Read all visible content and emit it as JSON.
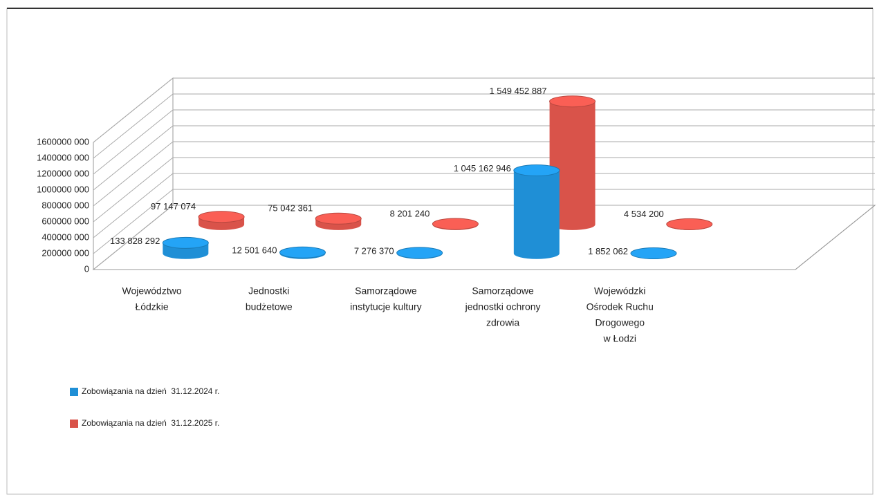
{
  "chart_data": {
    "type": "cylinder3d",
    "categories": [
      [
        "Województwo",
        "Łódzkie"
      ],
      [
        "Jednostki",
        "budżetowe"
      ],
      [
        "Samorządowe",
        "instytucje kultury"
      ],
      [
        "Samorządowe",
        "jednostki ochrony",
        "zdrowia"
      ],
      [
        "Wojewódzki",
        "Ośrodek Ruchu",
        "Drogowego",
        "w Łodzi"
      ]
    ],
    "series": [
      {
        "name": "Zobowiązania na dzień  31.12.2024 r.",
        "color": "#1f8fd6",
        "values": [
          133828292,
          12501640,
          7276370,
          1045162946,
          1852062
        ],
        "value_labels": [
          "133 828 292",
          "12 501 640",
          "7 276 370",
          "1 045 162 946",
          "1 852 062"
        ]
      },
      {
        "name": "Zobowiązania na dzień  31.12.2025 r.",
        "color": "#d9534a",
        "values": [
          97147074,
          75042361,
          8201240,
          1549452887,
          4534200
        ],
        "value_labels": [
          "97 147 074",
          "75 042 361",
          "8 201 240",
          "1 549 452 887",
          "4 534 200"
        ]
      }
    ],
    "ylim": [
      0,
      1600000000
    ],
    "yticks": [
      0,
      {
        "value": 200000000,
        "label": "200000 000"
      },
      {
        "value": 400000000,
        "label": "400000 000"
      },
      {
        "value": 600000000,
        "label": "600000 000"
      },
      {
        "value": 800000000,
        "label": "800000 000"
      },
      {
        "value": 1000000000,
        "label": "1000000 000"
      },
      {
        "value": 1200000000,
        "label": "1200000 000"
      },
      {
        "value": 1400000000,
        "label": "1400000 000"
      },
      {
        "value": 1600000000,
        "label": "1600000 000"
      }
    ],
    "grid": true
  }
}
